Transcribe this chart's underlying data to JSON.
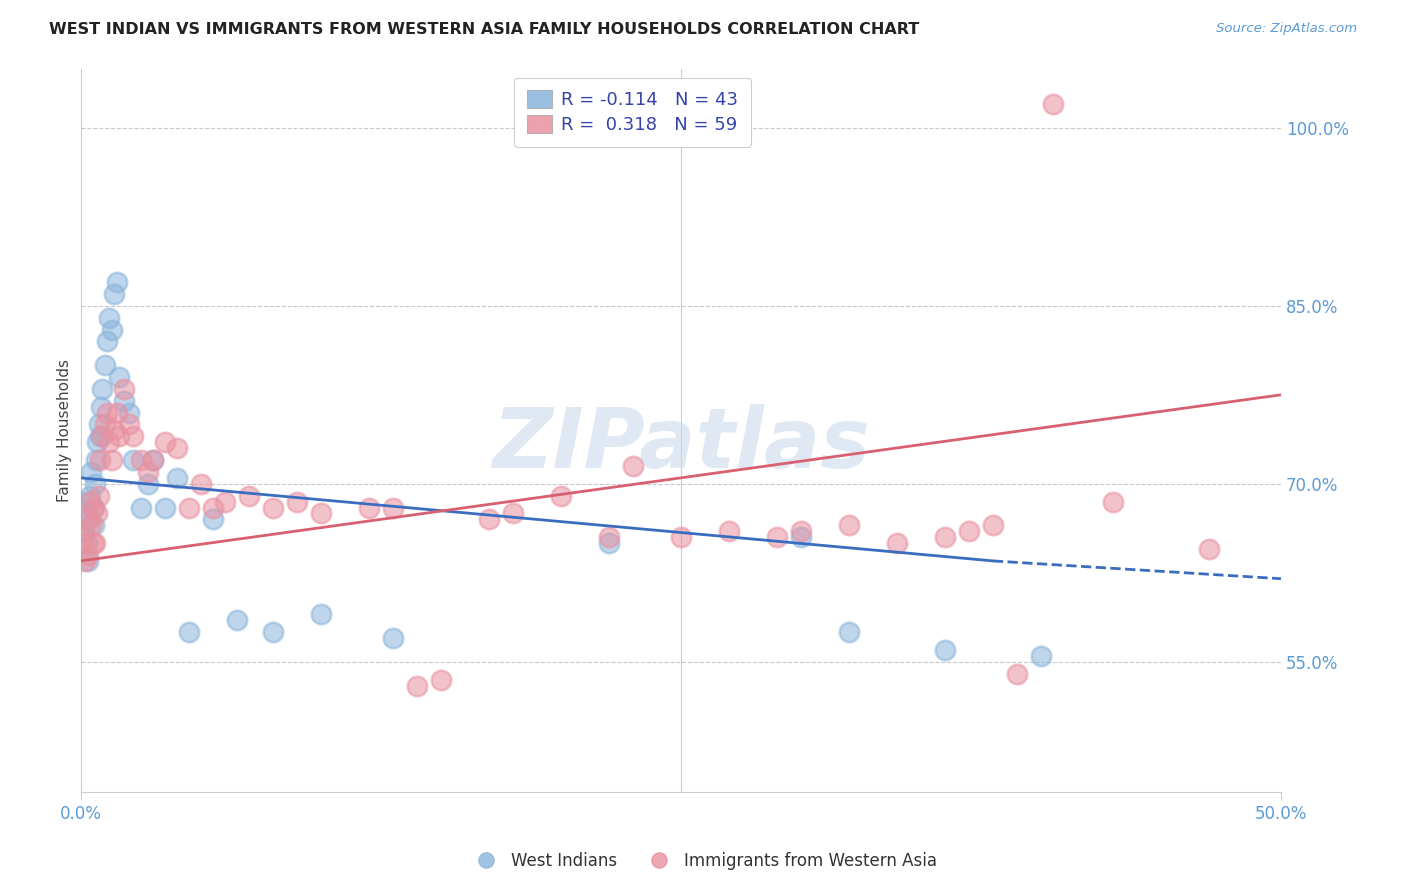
{
  "title": "WEST INDIAN VS IMMIGRANTS FROM WESTERN ASIA FAMILY HOUSEHOLDS CORRELATION CHART",
  "source": "Source: ZipAtlas.com",
  "ylabel": "Family Households",
  "right_yticks": [
    55.0,
    70.0,
    85.0,
    100.0
  ],
  "watermark": "ZIPatlas",
  "legend_blue_R": "-0.114",
  "legend_blue_N": "43",
  "legend_pink_R": "0.318",
  "legend_pink_N": "59",
  "legend_blue_label": "West Indians",
  "legend_pink_label": "Immigrants from Western Asia",
  "blue_color": "#8ab4db",
  "pink_color": "#e891a0",
  "blue_line_color": "#3a6dbf",
  "pink_line_color": "#d96070",
  "xmin": 0.0,
  "xmax": 50.0,
  "ymin": 44.0,
  "ymax": 105.0,
  "blue_x": [
    0.1,
    0.15,
    0.2,
    0.25,
    0.3,
    0.35,
    0.4,
    0.45,
    0.5,
    0.55,
    0.6,
    0.65,
    0.7,
    0.75,
    0.8,
    0.85,
    0.9,
    1.0,
    1.1,
    1.2,
    1.3,
    1.4,
    1.5,
    1.6,
    1.8,
    2.0,
    2.2,
    2.5,
    2.8,
    3.0,
    3.5,
    4.0,
    4.5,
    5.5,
    6.5,
    8.0,
    10.0,
    13.0,
    22.0,
    30.0,
    32.0,
    36.0,
    40.0
  ],
  "blue_y": [
    67.5,
    66.0,
    68.5,
    65.0,
    63.5,
    67.0,
    69.0,
    71.0,
    68.0,
    66.5,
    70.0,
    72.0,
    73.5,
    75.0,
    74.0,
    76.5,
    78.0,
    80.0,
    82.0,
    84.0,
    83.0,
    86.0,
    87.0,
    79.0,
    77.0,
    76.0,
    72.0,
    68.0,
    70.0,
    72.0,
    68.0,
    70.5,
    57.5,
    67.0,
    58.5,
    57.5,
    59.0,
    57.0,
    65.0,
    65.5,
    57.5,
    56.0,
    55.5
  ],
  "pink_x": [
    0.1,
    0.15,
    0.2,
    0.3,
    0.35,
    0.4,
    0.45,
    0.5,
    0.55,
    0.6,
    0.7,
    0.75,
    0.8,
    0.9,
    1.0,
    1.1,
    1.2,
    1.3,
    1.4,
    1.5,
    1.6,
    1.8,
    2.0,
    2.2,
    2.5,
    2.8,
    3.0,
    3.5,
    4.0,
    4.5,
    5.0,
    5.5,
    6.0,
    7.0,
    8.0,
    9.0,
    10.0,
    12.0,
    13.0,
    14.0,
    15.0,
    17.0,
    18.0,
    20.0,
    22.0,
    23.0,
    25.0,
    27.0,
    29.0,
    30.0,
    32.0,
    34.0,
    36.0,
    37.0,
    38.0,
    39.0,
    40.5,
    43.0,
    47.0
  ],
  "pink_y": [
    66.0,
    65.0,
    63.5,
    64.0,
    67.0,
    68.5,
    66.5,
    65.0,
    68.0,
    65.0,
    67.5,
    69.0,
    72.0,
    74.0,
    75.0,
    76.0,
    73.5,
    72.0,
    74.5,
    76.0,
    74.0,
    78.0,
    75.0,
    74.0,
    72.0,
    71.0,
    72.0,
    73.5,
    73.0,
    68.0,
    70.0,
    68.0,
    68.5,
    69.0,
    68.0,
    68.5,
    67.5,
    68.0,
    68.0,
    53.0,
    53.5,
    67.0,
    67.5,
    69.0,
    65.5,
    71.5,
    65.5,
    66.0,
    65.5,
    66.0,
    66.5,
    65.0,
    65.5,
    66.0,
    66.5,
    54.0,
    102.0,
    68.5,
    64.5
  ]
}
